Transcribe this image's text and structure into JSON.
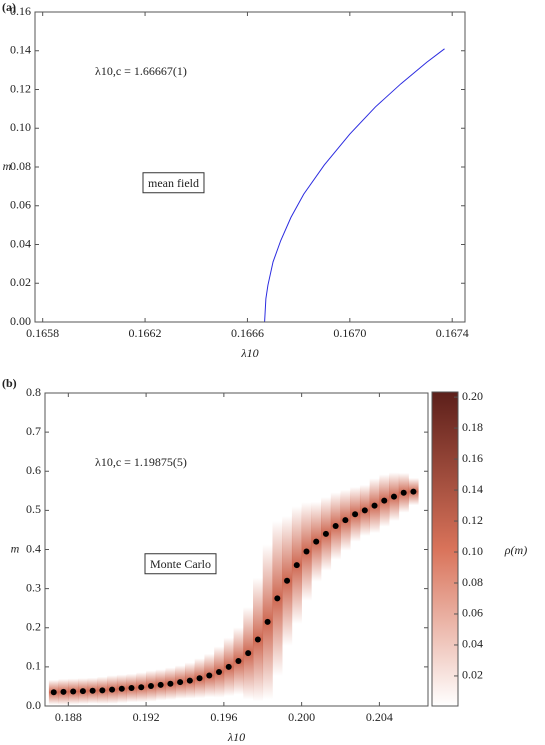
{
  "chart_data": [
    {
      "type": "line",
      "panel_label": "(a)",
      "xlabel": "λ10",
      "ylabel": "m",
      "annotations": [
        "λ10,c = 1.66667(1)",
        "mean field"
      ],
      "x": [
        0.16577,
        0.166667,
        0.166672,
        0.16668,
        0.1667,
        0.16673,
        0.16677,
        0.16682,
        0.1669,
        0.167,
        0.1671,
        0.1672,
        0.1673,
        0.16737
      ],
      "series": [
        {
          "color": "#2b2be0",
          "values": [
            0,
            0,
            0.012,
            0.019,
            0.031,
            0.042,
            0.054,
            0.066,
            0.081,
            0.097,
            0.111,
            0.123,
            0.134,
            0.141
          ]
        }
      ],
      "xlim": [
        0.16577,
        0.16745
      ],
      "xticks": [
        0.1658,
        0.1662,
        0.1666,
        {
          "value": 0.167,
          "label": "0.1670"
        },
        0.1674
      ],
      "ylim": [
        0,
        0.16
      ],
      "yticks": [
        {
          "value": 0,
          "label": "0.00"
        },
        0.02,
        0.04,
        0.06,
        0.08,
        {
          "value": 0.1,
          "label": "0.10"
        },
        0.12,
        0.14,
        0.16
      ]
    },
    {
      "type": "scatter",
      "panel_label": "(b)",
      "xlabel": "λ10",
      "ylabel": "m",
      "annotations": [
        "λ10,c = 1.19875(5)",
        "Monte Carlo"
      ],
      "x": [
        0.18725,
        0.18775,
        0.18825,
        0.18875,
        0.18925,
        0.18975,
        0.19025,
        0.19075,
        0.19125,
        0.19175,
        0.19225,
        0.19275,
        0.19325,
        0.19375,
        0.19425,
        0.19475,
        0.19525,
        0.19575,
        0.19625,
        0.19675,
        0.19725,
        0.19775,
        0.19825,
        0.19875,
        0.19925,
        0.19975,
        0.20025,
        0.20075,
        0.20125,
        0.20175,
        0.20225,
        0.20275,
        0.20325,
        0.20375,
        0.20425,
        0.20475,
        0.20525,
        0.20575
      ],
      "series": [
        {
          "color": "#000000",
          "values": [
            0.035,
            0.036,
            0.037,
            0.038,
            0.039,
            0.04,
            0.042,
            0.044,
            0.046,
            0.048,
            0.051,
            0.054,
            0.057,
            0.061,
            0.065,
            0.071,
            0.078,
            0.087,
            0.1,
            0.115,
            0.135,
            0.17,
            0.215,
            0.275,
            0.32,
            0.36,
            0.395,
            0.42,
            0.44,
            0.46,
            0.475,
            0.49,
            0.5,
            0.512,
            0.525,
            0.535,
            0.545,
            0.548
          ]
        }
      ],
      "density_color": "#c9583f",
      "xlim": [
        0.1868,
        0.2065
      ],
      "xticks": [
        0.188,
        0.192,
        0.196,
        {
          "value": 0.2,
          "label": "0.200"
        },
        0.204
      ],
      "ylim": [
        0,
        0.8
      ],
      "yticks": [
        {
          "value": 0,
          "label": "0.0"
        },
        0.1,
        0.2,
        0.3,
        0.4,
        0.5,
        0.6,
        0.7,
        0.8
      ],
      "colorbar": {
        "label": "ρ(m)",
        "lim": [
          0.0006,
          0.2033
        ],
        "colors": [
          "#ffffff",
          "#d9735a",
          "#5c1f1a"
        ],
        "ticks": [
          0.02,
          0.04,
          0.06,
          0.08,
          {
            "value": 0.1,
            "label": "0.10"
          },
          0.12,
          0.14,
          0.16,
          0.18,
          {
            "value": 0.2,
            "label": "0.20"
          }
        ]
      }
    }
  ]
}
